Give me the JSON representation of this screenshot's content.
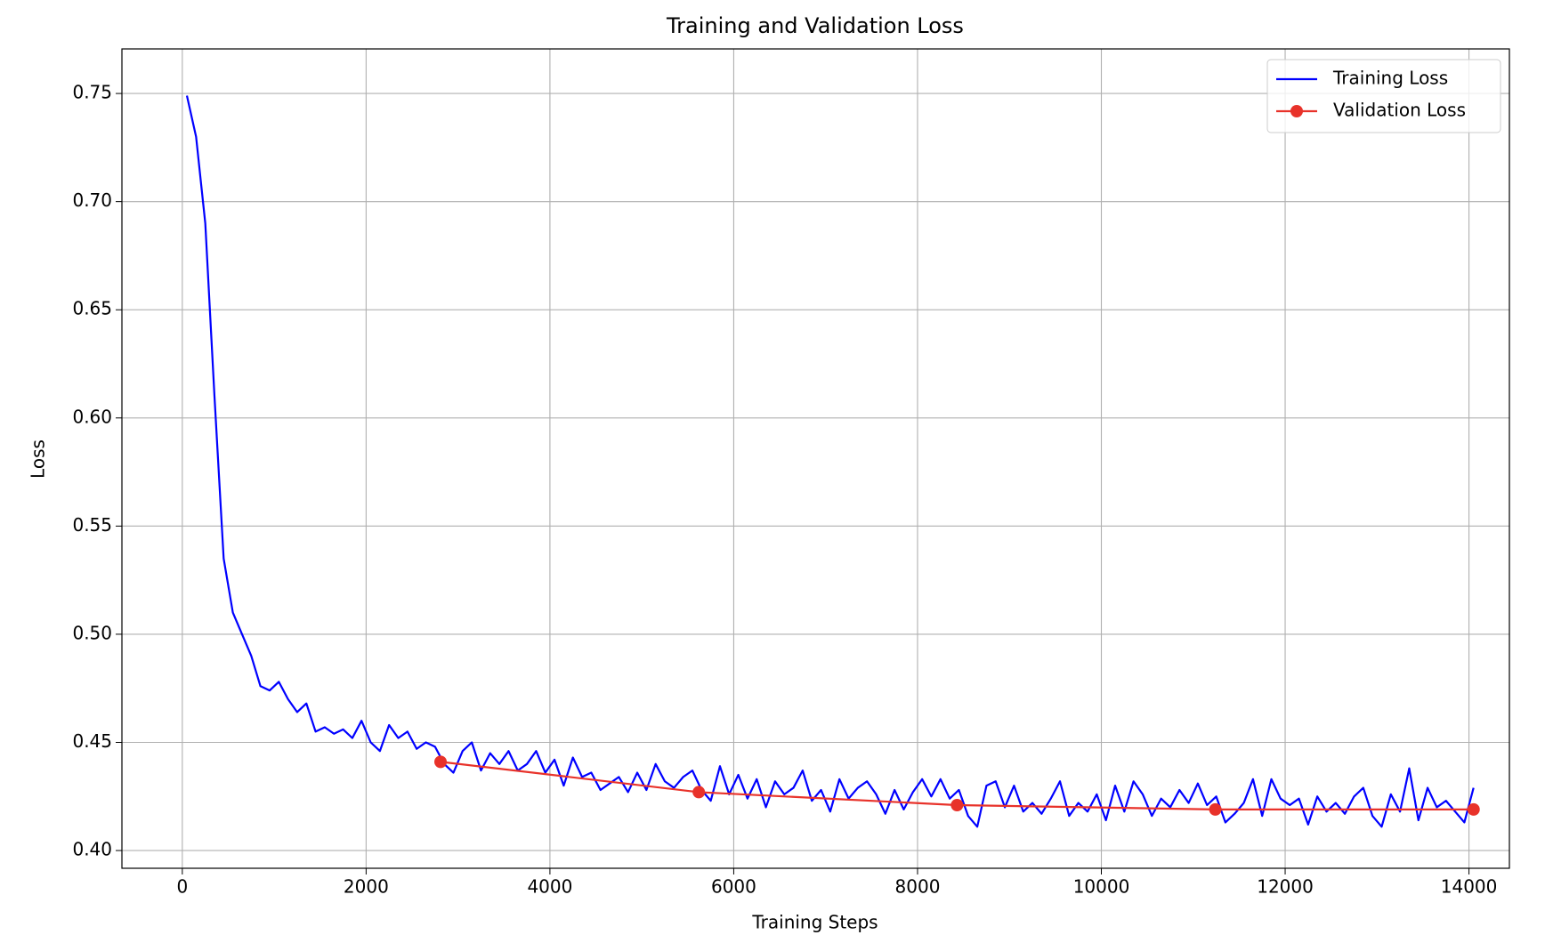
{
  "chart_data": {
    "type": "line",
    "title": "Training and Validation Loss",
    "x_label": "Training Steps",
    "y_label": "Loss",
    "xlim": [
      -657,
      14440
    ],
    "ylim": [
      0.3918,
      0.7706
    ],
    "xticks": [
      0,
      2000,
      4000,
      6000,
      8000,
      10000,
      12000,
      14000
    ],
    "yticks": [
      {
        "value": 0.4,
        "label": "0.40"
      },
      0.45,
      {
        "value": 0.5,
        "label": "0.50"
      },
      0.55,
      {
        "value": 0.6,
        "label": "0.60"
      },
      0.65,
      {
        "value": 0.7,
        "label": "0.70"
      },
      0.75
    ],
    "grid": true,
    "legend": "upper right",
    "series": [
      {
        "name": "Training Loss",
        "color": "#0000ff",
        "marker": "none",
        "x": [
          50,
          150,
          250,
          350,
          450,
          550,
          650,
          750,
          850,
          950,
          1050,
          1150,
          1250,
          1350,
          1450,
          1550,
          1650,
          1750,
          1850,
          1950,
          2050,
          2150,
          2250,
          2350,
          2450,
          2550,
          2650,
          2750,
          2850,
          2950,
          3050,
          3150,
          3250,
          3350,
          3450,
          3550,
          3650,
          3750,
          3850,
          3950,
          4050,
          4150,
          4250,
          4350,
          4450,
          4550,
          4650,
          4750,
          4850,
          4950,
          5050,
          5150,
          5250,
          5350,
          5450,
          5550,
          5650,
          5750,
          5850,
          5950,
          6050,
          6150,
          6250,
          6350,
          6450,
          6550,
          6650,
          6750,
          6850,
          6950,
          7050,
          7150,
          7250,
          7350,
          7450,
          7550,
          7650,
          7750,
          7850,
          7950,
          8050,
          8150,
          8250,
          8350,
          8450,
          8550,
          8650,
          8750,
          8850,
          8950,
          9050,
          9150,
          9250,
          9350,
          9450,
          9550,
          9650,
          9750,
          9850,
          9950,
          10050,
          10150,
          10250,
          10350,
          10450,
          10550,
          10650,
          10750,
          10850,
          10950,
          11050,
          11150,
          11250,
          11350,
          11450,
          11550,
          11650,
          11750,
          11850,
          11950,
          12050,
          12150,
          12250,
          12350,
          12450,
          12550,
          12650,
          12750,
          12850,
          12950,
          13050,
          13150,
          13250,
          13350,
          13450,
          13550,
          13650,
          13750,
          13850,
          13950,
          14050
        ],
        "values": [
          0.749,
          0.73,
          0.69,
          0.61,
          0.535,
          0.51,
          0.5,
          0.49,
          0.476,
          0.474,
          0.478,
          0.47,
          0.464,
          0.468,
          0.455,
          0.457,
          0.454,
          0.456,
          0.452,
          0.46,
          0.45,
          0.446,
          0.458,
          0.452,
          0.455,
          0.447,
          0.45,
          0.448,
          0.44,
          0.436,
          0.446,
          0.45,
          0.437,
          0.445,
          0.44,
          0.446,
          0.437,
          0.44,
          0.446,
          0.436,
          0.442,
          0.43,
          0.443,
          0.434,
          0.436,
          0.428,
          0.431,
          0.434,
          0.427,
          0.436,
          0.428,
          0.44,
          0.432,
          0.429,
          0.434,
          0.437,
          0.428,
          0.423,
          0.439,
          0.426,
          0.435,
          0.424,
          0.433,
          0.42,
          0.432,
          0.426,
          0.429,
          0.437,
          0.423,
          0.428,
          0.418,
          0.433,
          0.424,
          0.429,
          0.432,
          0.426,
          0.417,
          0.428,
          0.419,
          0.427,
          0.433,
          0.425,
          0.433,
          0.424,
          0.428,
          0.416,
          0.411,
          0.43,
          0.432,
          0.42,
          0.43,
          0.418,
          0.422,
          0.417,
          0.424,
          0.432,
          0.416,
          0.422,
          0.418,
          0.426,
          0.414,
          0.43,
          0.418,
          0.432,
          0.426,
          0.416,
          0.424,
          0.42,
          0.428,
          0.422,
          0.431,
          0.421,
          0.425,
          0.413,
          0.417,
          0.422,
          0.433,
          0.416,
          0.433,
          0.424,
          0.421,
          0.424,
          0.412,
          0.425,
          0.418,
          0.422,
          0.417,
          0.425,
          0.429,
          0.416,
          0.411,
          0.426,
          0.418,
          0.438,
          0.414,
          0.429,
          0.42,
          0.423,
          0.418,
          0.413,
          0.429
        ]
      },
      {
        "name": "Validation Loss",
        "color": "#e8322a",
        "marker": "o",
        "x": [
          2810,
          5620,
          8430,
          11240,
          14050
        ],
        "values": [
          0.441,
          0.427,
          0.421,
          0.419,
          0.419
        ]
      }
    ]
  }
}
